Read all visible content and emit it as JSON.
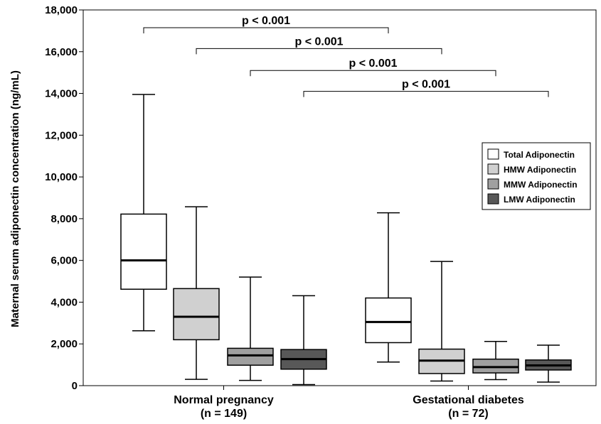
{
  "chart_data": {
    "type": "boxplot",
    "ylabel": "Maternal serum adiponectin concentration (ng/mL)",
    "ylim": [
      0,
      18000
    ],
    "yticks": [
      "0",
      "2,000",
      "4,000",
      "6,000",
      "8,000",
      "10,000",
      "12,000",
      "14,000",
      "16,000",
      "18,000"
    ],
    "ytick_values": [
      0,
      2000,
      4000,
      6000,
      8000,
      10000,
      12000,
      14000,
      16000,
      18000
    ],
    "grid": false,
    "legend_position": "right",
    "groups": [
      {
        "label_line1": "Normal pregnancy",
        "label_line2": "(n = 149)"
      },
      {
        "label_line1": "Gestational diabetes",
        "label_line2": "(n = 72)"
      }
    ],
    "series": [
      {
        "name": "Total Adiponectin",
        "color": "#ffffff",
        "boxes": [
          {
            "group": 0,
            "min": 2630,
            "q1": 4620,
            "median": 6000,
            "q3": 8220,
            "max": 13950
          },
          {
            "group": 1,
            "min": 1130,
            "q1": 2060,
            "median": 3050,
            "q3": 4200,
            "max": 8280
          }
        ]
      },
      {
        "name": "HMW Adiponectin",
        "color": "#d0d0d0",
        "boxes": [
          {
            "group": 0,
            "min": 300,
            "q1": 2200,
            "median": 3300,
            "q3": 4650,
            "max": 8570
          },
          {
            "group": 1,
            "min": 220,
            "q1": 580,
            "median": 1200,
            "q3": 1750,
            "max": 5950
          }
        ]
      },
      {
        "name": "MMW Adiponectin",
        "color": "#a0a0a0",
        "boxes": [
          {
            "group": 0,
            "min": 250,
            "q1": 980,
            "median": 1450,
            "q3": 1790,
            "max": 5200
          },
          {
            "group": 1,
            "min": 290,
            "q1": 610,
            "median": 890,
            "q3": 1270,
            "max": 2120
          }
        ]
      },
      {
        "name": "LMW Adiponectin",
        "color": "#585858",
        "boxes": [
          {
            "group": 0,
            "min": 50,
            "q1": 790,
            "median": 1270,
            "q3": 1730,
            "max": 4310
          },
          {
            "group": 1,
            "min": 170,
            "q1": 750,
            "median": 970,
            "q3": 1230,
            "max": 1940
          }
        ]
      }
    ],
    "annotations": [
      {
        "series": 0,
        "text": "p < 0.001",
        "y": 17150
      },
      {
        "series": 1,
        "text": "p < 0.001",
        "y": 16150
      },
      {
        "series": 2,
        "text": "p < 0.001",
        "y": 15100
      },
      {
        "series": 3,
        "text": "p < 0.001",
        "y": 14100
      }
    ]
  }
}
